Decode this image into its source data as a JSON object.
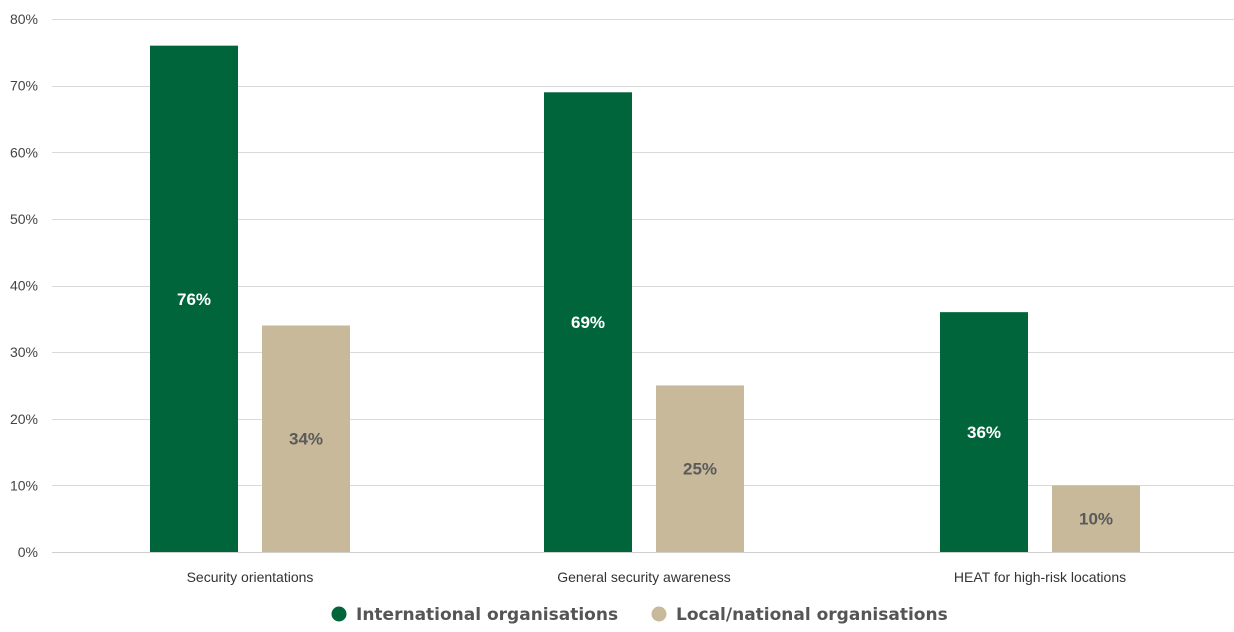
{
  "chart_data": {
    "type": "bar",
    "categories": [
      "Security orientations",
      "General security awareness",
      "HEAT for high-risk locations"
    ],
    "series": [
      {
        "name": "International organisations",
        "values": [
          76,
          69,
          36
        ],
        "labels": [
          "76%",
          "69%",
          "36%"
        ],
        "color": "#00653a",
        "label_color": "#ffffff"
      },
      {
        "name": "Local/national organisations",
        "values": [
          34,
          25,
          10
        ],
        "labels": [
          "34%",
          "25%",
          "10%"
        ],
        "color": "#c9b99b",
        "label_color": "#5a5a5a"
      }
    ],
    "ylim": [
      0,
      80
    ],
    "yticks": [
      0,
      10,
      20,
      30,
      40,
      50,
      60,
      70,
      80
    ],
    "ytick_labels": [
      "0%",
      "10%",
      "20%",
      "30%",
      "40%",
      "50%",
      "60%",
      "70%",
      "80%"
    ],
    "grid": true,
    "legend_position": "bottom"
  }
}
